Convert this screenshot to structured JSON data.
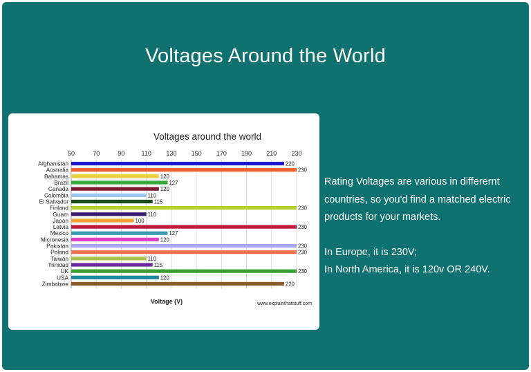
{
  "slide": {
    "title": "Voltages Around the World",
    "paragraph_1": "Rating Voltages are various in differernt countries, so you'd find a matched electric products for your markets.",
    "line_europe": "In Europe, it is 230V;",
    "line_na": "In North America, it is 120v OR 240V."
  },
  "chart_data": {
    "type": "bar",
    "orientation": "horizontal",
    "title": "Voltages around the world",
    "xlabel": "Voltage (V)",
    "source": "www.explainthatstuff.com",
    "xlim": [
      50,
      230
    ],
    "xticks": [
      50,
      70,
      90,
      110,
      130,
      150,
      170,
      190,
      210,
      230
    ],
    "grid": true,
    "categories": [
      "Afghanistan",
      "Australia",
      "Bahamas",
      "Brazil",
      "Canada",
      "Colombia",
      "El Salvador",
      "Finland",
      "Guam",
      "Japan",
      "Latvia",
      "Mexico",
      "Micronesia",
      "Pakistan",
      "Poland",
      "Taiwan",
      "Trinidad",
      "UK",
      "USA",
      "Zimbabwe"
    ],
    "values": [
      220,
      230,
      120,
      127,
      120,
      110,
      115,
      230,
      110,
      100,
      230,
      127,
      120,
      230,
      230,
      110,
      115,
      230,
      120,
      220
    ],
    "colors": [
      "#1c1ccc",
      "#f0602a",
      "#e8d038",
      "#38a838",
      "#7a1a2a",
      "#9ec8f0",
      "#1a4a1a",
      "#b8d030",
      "#3a1a6a",
      "#f0a030",
      "#c01838",
      "#3a9ab0",
      "#e040c8",
      "#a8a8f0",
      "#f07050",
      "#a8c050",
      "#6a2aa0",
      "#38a030",
      "#1a8a9a",
      "#8a5a2a"
    ]
  }
}
